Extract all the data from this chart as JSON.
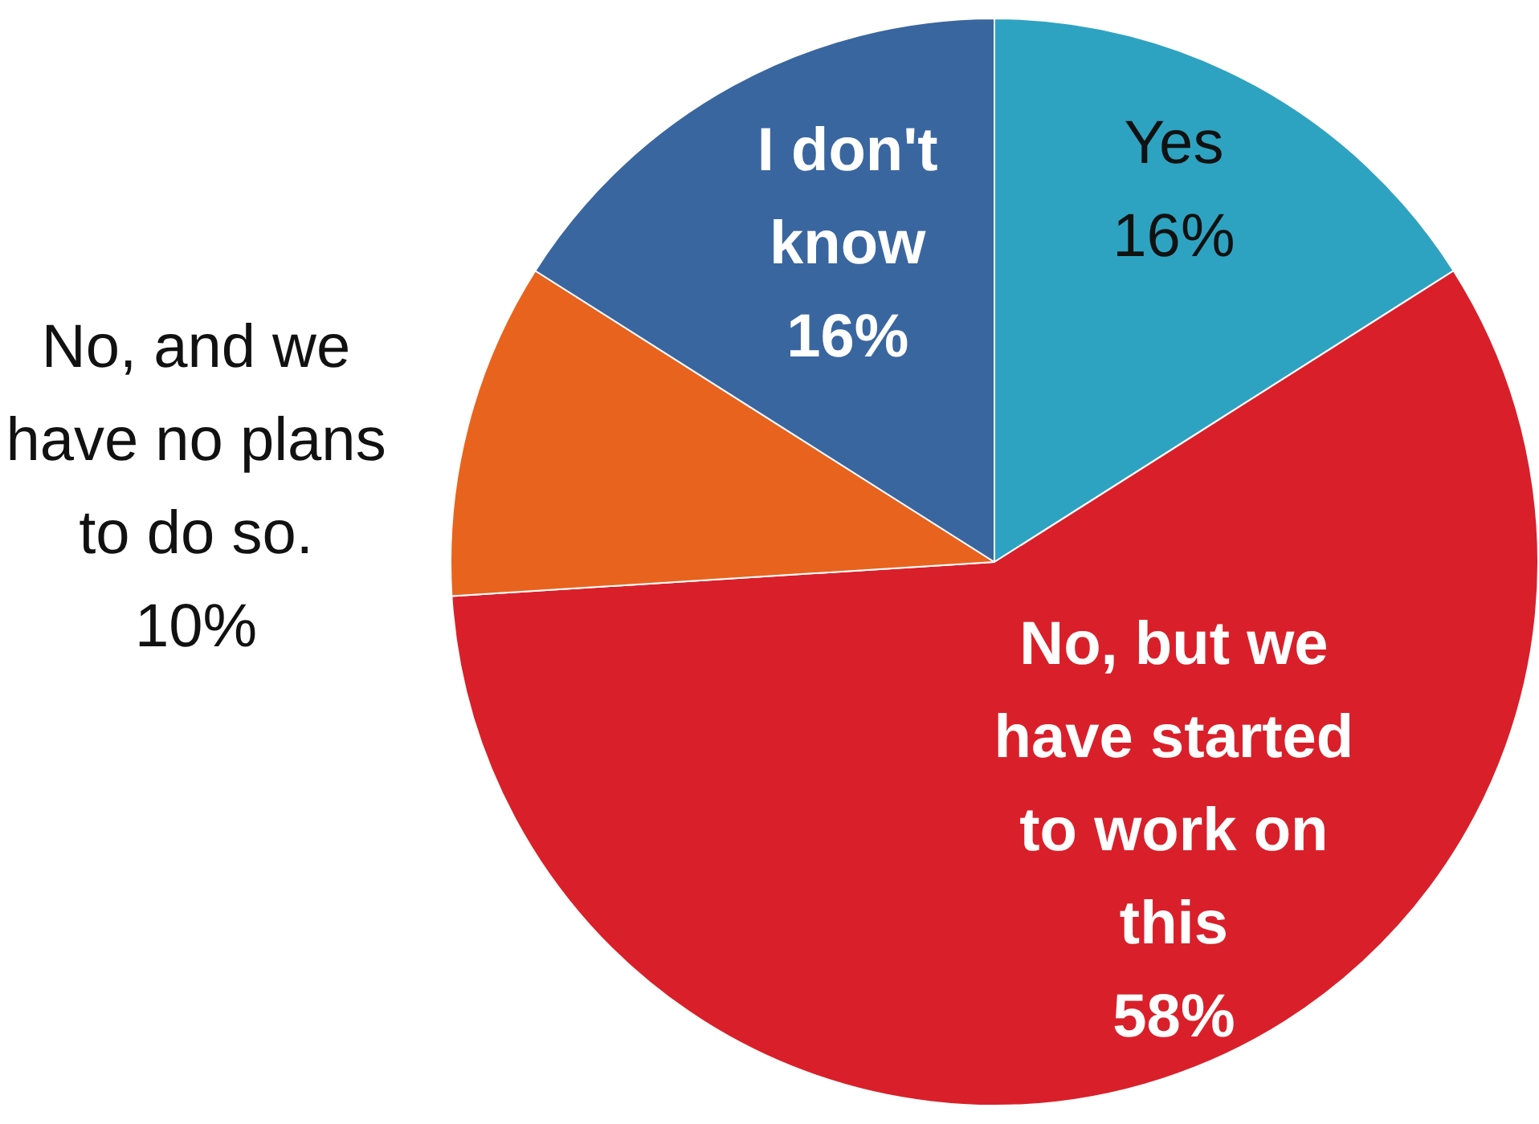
{
  "chart_data": {
    "type": "pie",
    "categories": [
      "Yes",
      "No, but we have started to work on this",
      "No, and we have no plans to do so.",
      "I don't know"
    ],
    "values": [
      16,
      58,
      10,
      16
    ],
    "colors": [
      "#2ea3c1",
      "#d9202a",
      "#e8641e",
      "#3a66a0"
    ],
    "value_labels": [
      "16%",
      "58%",
      "10%",
      "16%"
    ],
    "legend": false
  }
}
